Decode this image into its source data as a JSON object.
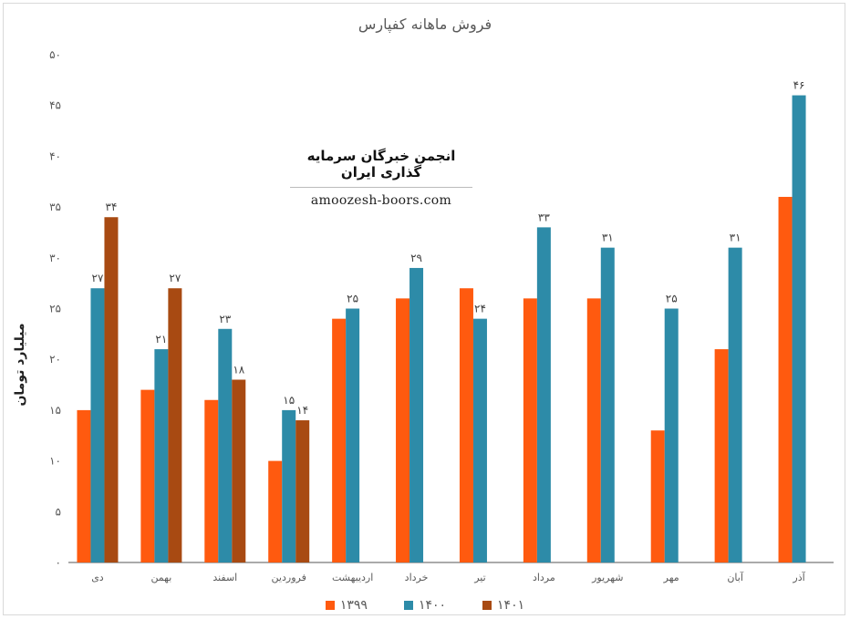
{
  "chart_data": {
    "type": "bar",
    "title": "فروش ماهانه کفپارس",
    "ylabel": "میلیارد تومان",
    "ylim": [
      0,
      50
    ],
    "yticks": [
      "۰",
      "۵",
      "۱۰",
      "۱۵",
      "۲۰",
      "۲۵",
      "۳۰",
      "۳۵",
      "۴۰",
      "۴۵",
      "۵۰"
    ],
    "categories": [
      "دی",
      "بهمن",
      "اسفند",
      "فروردین",
      "اردیبهشت",
      "خرداد",
      "تیر",
      "مرداد",
      "شهریور",
      "مهر",
      "آبان",
      "آذر"
    ],
    "series": [
      {
        "name": "۱۳۹۹",
        "color": "#ff5a0f",
        "values": [
          15,
          17,
          16,
          10,
          24,
          26,
          27,
          26,
          26,
          13,
          21,
          36
        ]
      },
      {
        "name": "۱۴۰۰",
        "color": "#2d8ba8",
        "values": [
          27,
          21,
          23,
          15,
          25,
          29,
          24,
          33,
          31,
          25,
          31,
          46
        ]
      },
      {
        "name": "۱۴۰۱",
        "color": "#a84a12",
        "values": [
          34,
          27,
          18,
          14,
          null,
          null,
          null,
          null,
          null,
          null,
          null,
          null
        ]
      }
    ],
    "data_labels": {
      "۱۴۰۰": [
        "۲۷",
        "۲۱",
        "۲۳",
        "۱۵",
        "۲۵",
        "۲۹",
        "۲۴",
        "۳۳",
        "۳۱",
        "۲۵",
        "۳۱",
        "۴۶"
      ],
      "۱۴۰۱": [
        "۳۴",
        "۲۷",
        "۱۸",
        "۱۴",
        "",
        "",
        "",
        "",
        "",
        "",
        "",
        ""
      ]
    },
    "legend": "bottom",
    "grid": false
  },
  "watermark": {
    "title": "انجمن خبرگان سرمایه گذاری ایران",
    "url": "amoozesh-boors.com"
  }
}
